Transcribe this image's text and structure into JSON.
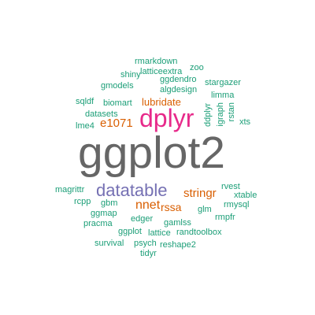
{
  "colors": {
    "background": "#ffffff",
    "large": "#666666",
    "magenta": "#e7298a",
    "purple": "#7570b3",
    "orange": "#d95f02",
    "teal": "#1b9e77"
  },
  "words": {
    "ggplot2": {
      "text": "ggplot2",
      "color": "#666666"
    },
    "dplyr": {
      "text": "dplyr",
      "color": "#e7298a"
    },
    "datatable": {
      "text": "datatable",
      "color": "#7570b3"
    },
    "nnet": {
      "text": "nnet",
      "color": "#d95f02"
    },
    "stringr": {
      "text": "stringr",
      "color": "#d95f02"
    },
    "rssa": {
      "text": "rssa",
      "color": "#d95f02"
    },
    "e1071": {
      "text": "e1071",
      "color": "#d95f02"
    },
    "lubridate": {
      "text": "lubridate",
      "color": "#d95f02"
    },
    "rmarkdown": {
      "text": "rmarkdown",
      "color": "#1b9e77"
    },
    "zoo": {
      "text": "zoo",
      "color": "#1b9e77"
    },
    "latticeextra": {
      "text": "latticeextra",
      "color": "#1b9e77"
    },
    "shiny": {
      "text": "shiny",
      "color": "#1b9e77"
    },
    "ggdendro": {
      "text": "ggdendro",
      "color": "#1b9e77"
    },
    "gmodels": {
      "text": "gmodels",
      "color": "#1b9e77"
    },
    "algdesign": {
      "text": "algdesign",
      "color": "#1b9e77"
    },
    "stargazer": {
      "text": "stargazer",
      "color": "#1b9e77"
    },
    "limma": {
      "text": "limma",
      "color": "#1b9e77"
    },
    "sqldf": {
      "text": "sqldf",
      "color": "#1b9e77"
    },
    "biomart": {
      "text": "biomart",
      "color": "#1b9e77"
    },
    "datasets": {
      "text": "datasets",
      "color": "#1b9e77"
    },
    "lme4": {
      "text": "lme4",
      "color": "#1b9e77"
    },
    "xts": {
      "text": "xts",
      "color": "#1b9e77"
    },
    "ddplyr": {
      "text": "ddplyr",
      "color": "#1b9e77"
    },
    "igraph": {
      "text": "igraph",
      "color": "#1b9e77"
    },
    "rstan": {
      "text": "rstan",
      "color": "#1b9e77"
    },
    "magrittr": {
      "text": "magrittr",
      "color": "#1b9e77"
    },
    "rvest": {
      "text": "rvest",
      "color": "#1b9e77"
    },
    "xtable": {
      "text": "xtable",
      "color": "#1b9e77"
    },
    "rcpp": {
      "text": "rcpp",
      "color": "#1b9e77"
    },
    "gbm": {
      "text": "gbm",
      "color": "#1b9e77"
    },
    "rmysql": {
      "text": "rmysql",
      "color": "#1b9e77"
    },
    "glm": {
      "text": "glm",
      "color": "#1b9e77"
    },
    "ggmap": {
      "text": "ggmap",
      "color": "#1b9e77"
    },
    "edger": {
      "text": "edger",
      "color": "#1b9e77"
    },
    "rmpfr": {
      "text": "rmpfr",
      "color": "#1b9e77"
    },
    "pracma": {
      "text": "pracma",
      "color": "#1b9e77"
    },
    "gamlss": {
      "text": "gamlss",
      "color": "#1b9e77"
    },
    "ggplot": {
      "text": "ggplot",
      "color": "#1b9e77"
    },
    "lattice": {
      "text": "lattice",
      "color": "#1b9e77"
    },
    "randtoolbox": {
      "text": "randtoolbox",
      "color": "#1b9e77"
    },
    "survival": {
      "text": "survival",
      "color": "#1b9e77"
    },
    "psych": {
      "text": "psych",
      "color": "#1b9e77"
    },
    "reshape2": {
      "text": "reshape2",
      "color": "#1b9e77"
    },
    "tidyr": {
      "text": "tidyr",
      "color": "#1b9e77"
    }
  }
}
